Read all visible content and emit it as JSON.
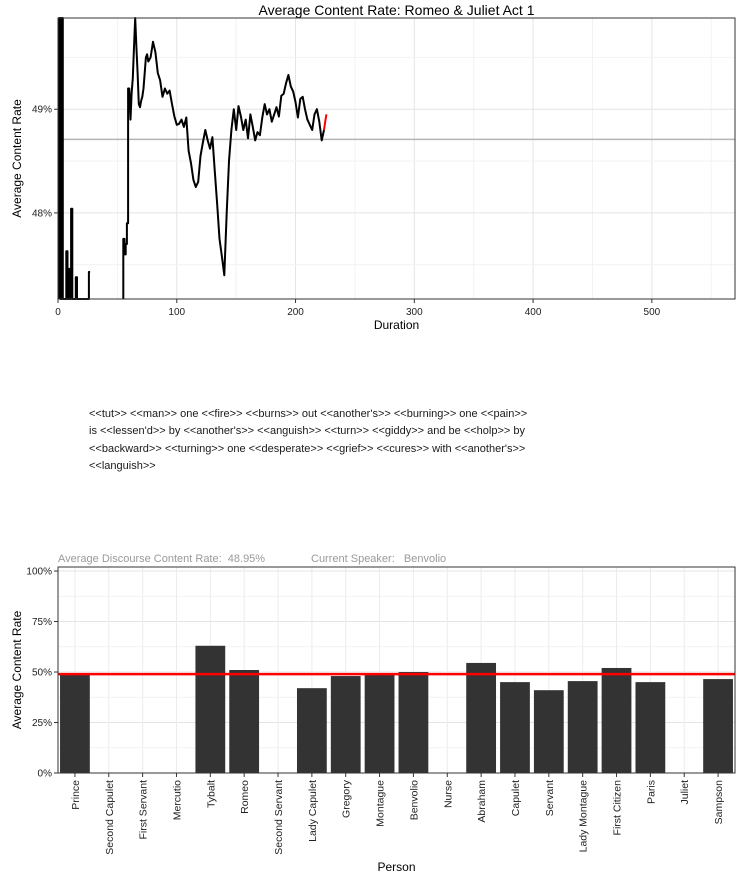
{
  "chart_data": [
    {
      "type": "line",
      "title": "Average Content Rate: Romeo & Juliet Act 1",
      "xlabel": "Duration",
      "ylabel": "Average Content Rate",
      "xlim": [
        0,
        570
      ],
      "ylim": [
        0.4717,
        0.4988
      ],
      "x_ticks": [
        0,
        100,
        200,
        300,
        400,
        500
      ],
      "x_tick_labels": [
        "0",
        "100",
        "200",
        "300",
        "400",
        "500"
      ],
      "y_ticks": [
        0.48,
        0.49
      ],
      "y_tick_labels": [
        "48%",
        "49%"
      ],
      "reference_line": 0.4871,
      "grid": true,
      "series": [
        {
          "color": "#000000",
          "x": [
            1,
            1,
            2,
            2,
            3,
            3,
            4,
            4,
            5,
            5,
            6,
            6,
            7,
            7,
            8,
            8,
            9,
            9,
            10,
            10,
            11,
            11,
            12,
            12,
            13,
            13,
            14,
            14,
            15,
            15,
            16,
            16,
            17,
            17,
            18,
            18,
            19,
            19,
            20,
            20,
            21,
            21,
            22,
            22,
            23,
            23,
            24,
            24,
            25,
            25,
            26,
            26,
            27
          ],
          "y": [
            0.4717,
            0.4988,
            0.4988,
            0.4717,
            0.4717,
            0.4988,
            0.4988,
            0.4717,
            0.4717,
            0.4717,
            0.4717,
            0.4717,
            0.4717,
            0.4763,
            0.4763,
            0.4717,
            0.4717,
            0.4746,
            0.4746,
            0.4717,
            0.4717,
            0.4804,
            0.4804,
            0.4717,
            0.4717,
            0.4717,
            0.4717,
            0.4717,
            0.4717,
            0.4738,
            0.4738,
            0.4717,
            0.4717,
            0.4717,
            0.4717,
            0.4717,
            0.4717,
            0.4717,
            0.4717,
            0.4717,
            0.4717,
            0.4717,
            0.4717,
            0.4717,
            0.4717,
            0.4717,
            0.4717,
            0.4717,
            0.4717,
            0.4717,
            0.4717,
            0.4743,
            0.4743
          ]
        },
        {
          "color": "#000000",
          "x": [
            55,
            55,
            56,
            56,
            57,
            57,
            58,
            58,
            59,
            59,
            60,
            61,
            62,
            63,
            64,
            65,
            66,
            67,
            68,
            69,
            70,
            71,
            72,
            73,
            74,
            75,
            76,
            78,
            80,
            82,
            84,
            86,
            88,
            90,
            92,
            94,
            96,
            98,
            100,
            102,
            104,
            106,
            108,
            110,
            112,
            114,
            116,
            118,
            120,
            122,
            124,
            126,
            128,
            130,
            132,
            134,
            136,
            138,
            140,
            142,
            144,
            146,
            148,
            150,
            152,
            154,
            156,
            158,
            160,
            162,
            164,
            166,
            168,
            170,
            172,
            174,
            176,
            178,
            180,
            182,
            184,
            186,
            188,
            190,
            192,
            194,
            196,
            198,
            200,
            202,
            204,
            206,
            208,
            210,
            212,
            214,
            216,
            218,
            220,
            222,
            224
          ],
          "y": [
            0.4717,
            0.4775,
            0.4775,
            0.476,
            0.476,
            0.477,
            0.477,
            0.479,
            0.479,
            0.492,
            0.492,
            0.489,
            0.4915,
            0.493,
            0.496,
            0.4988,
            0.496,
            0.4935,
            0.4905,
            0.4902,
            0.4908,
            0.4912,
            0.492,
            0.4935,
            0.495,
            0.4953,
            0.4946,
            0.495,
            0.4965,
            0.4955,
            0.4935,
            0.4928,
            0.4912,
            0.492,
            0.4915,
            0.4918,
            0.4905,
            0.4893,
            0.4885,
            0.4886,
            0.489,
            0.4883,
            0.4892,
            0.486,
            0.4848,
            0.4832,
            0.4825,
            0.483,
            0.4855,
            0.4868,
            0.488,
            0.487,
            0.4862,
            0.4873,
            0.484,
            0.4808,
            0.4775,
            0.4758,
            0.474,
            0.48,
            0.485,
            0.488,
            0.49,
            0.488,
            0.4903,
            0.4893,
            0.488,
            0.489,
            0.4872,
            0.4895,
            0.4883,
            0.487,
            0.4878,
            0.4875,
            0.4892,
            0.4905,
            0.4895,
            0.49,
            0.4888,
            0.4895,
            0.4902,
            0.4893,
            0.4913,
            0.4915,
            0.4925,
            0.4933,
            0.4922,
            0.4917,
            0.4907,
            0.4892,
            0.491,
            0.4912,
            0.49,
            0.489,
            0.4885,
            0.488,
            0.4895,
            0.49,
            0.4888,
            0.487,
            0.488
          ]
        },
        {
          "color": "#ff0000",
          "x": [
            224,
            225,
            226
          ],
          "y": [
            0.488,
            0.4888,
            0.4895
          ]
        }
      ]
    },
    {
      "type": "bar",
      "xlabel": "Person",
      "ylabel": "Average Content Rate",
      "ylim": [
        0,
        1.02
      ],
      "y_ticks": [
        0,
        0.25,
        0.5,
        0.75,
        1.0
      ],
      "y_tick_labels": [
        "0%",
        "25%",
        "50%",
        "75%",
        "100%"
      ],
      "reference_line": 0.4895,
      "grid": true,
      "categories": [
        "Prince",
        "Second Capulet",
        "First Servant",
        "Mercutio",
        "Tybalt",
        "Romeo",
        "Second Servant",
        "Lady Capulet",
        "Gregory",
        "Montague",
        "Benvolio",
        "Nurse",
        "Abraham",
        "Capulet",
        "Servant",
        "Lady Montague",
        "First Citizen",
        "Paris",
        "Juliet",
        "Sampson"
      ],
      "values": [
        0.49,
        0,
        0,
        0,
        0.63,
        0.51,
        0,
        0.42,
        0.48,
        0.49,
        0.5,
        0,
        0.545,
        0.45,
        0.41,
        0.455,
        0.52,
        0.45,
        0,
        0.465
      ]
    }
  ],
  "discourse": {
    "text": "<<tut>> <<man>> one <<fire>> <<burns>> out <<another's>> <<burning>> one <<pain>> is <<lessen'd>> by <<another's>> <<anguish>> <<turn>> <<giddy>> and be <<holp>> by <<backward>> <<turning>> one <<desperate>> <<grief>> <<cures>> with <<another's>> <<languish>>",
    "average_rate_label": "Average Discourse Content Rate:  48.95%",
    "speaker_label": "Current Speaker:   Benvolio"
  }
}
